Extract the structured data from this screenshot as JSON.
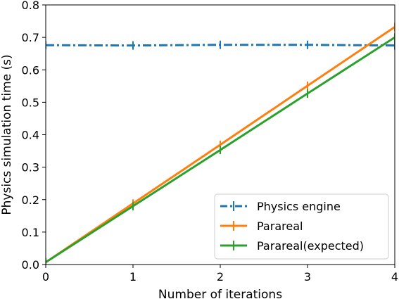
{
  "chart_data": {
    "type": "line",
    "title": "",
    "xlabel": "Number of iterations",
    "ylabel": "Physics simulation time (s)",
    "xlim": [
      0,
      4
    ],
    "ylim": [
      0,
      0.8
    ],
    "x_ticks": [
      "0",
      "1",
      "2",
      "3",
      "4"
    ],
    "y_ticks": [
      "0.0",
      "0.1",
      "0.2",
      "0.3",
      "0.4",
      "0.5",
      "0.6",
      "0.7",
      "0.8"
    ],
    "grid": false,
    "legend_position": "lower-right",
    "series": [
      {
        "name": "Physics engine",
        "color": "#1f77b4",
        "linestyle": "dashdot",
        "marker": "errorbar",
        "x": [
          0,
          1,
          2,
          3,
          4
        ],
        "y": [
          0.676,
          0.675,
          0.677,
          0.677,
          0.675
        ]
      },
      {
        "name": "Parareal",
        "color": "#ff7f0e",
        "linestyle": "solid",
        "marker": "errorbar",
        "x": [
          0,
          1,
          2,
          3,
          4
        ],
        "y": [
          0.007,
          0.188,
          0.369,
          0.551,
          0.732
        ]
      },
      {
        "name": "Parareal(expected)",
        "color": "#2ca02c",
        "linestyle": "solid",
        "marker": "errorbar",
        "x": [
          0,
          1,
          2,
          3,
          4
        ],
        "y": [
          0.007,
          0.18,
          0.353,
          0.527,
          0.7
        ]
      }
    ]
  }
}
